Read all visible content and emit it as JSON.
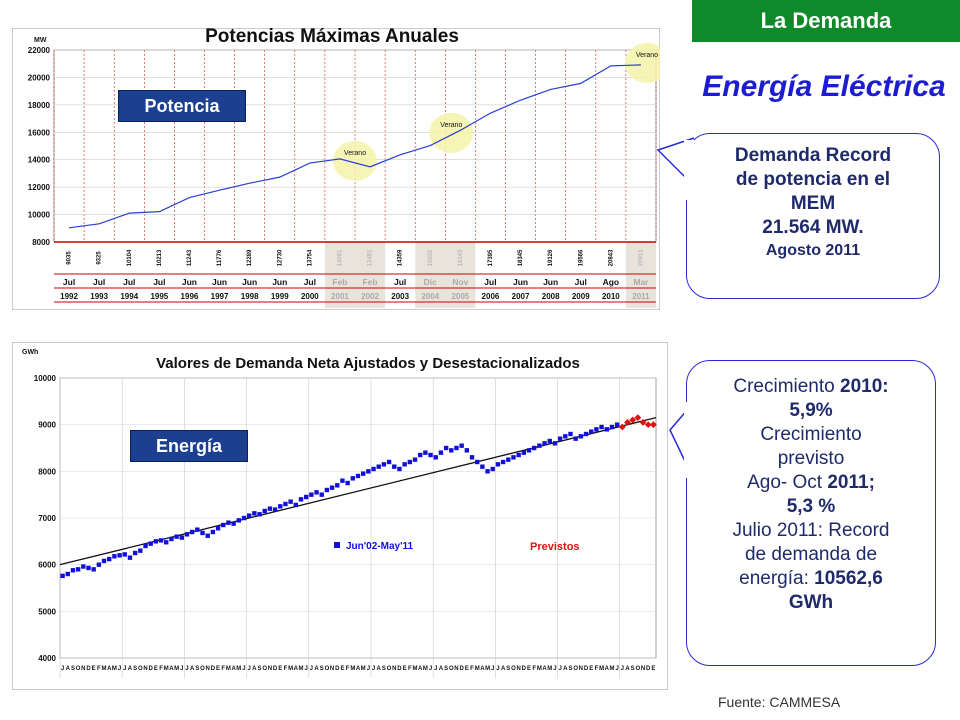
{
  "section_badge": "La Demanda",
  "title": "Energía Eléctrica",
  "source": "Fuente: CAMMESA",
  "tags": {
    "potencia": "Potencia",
    "energia": "Energía"
  },
  "callout_potencia": {
    "lines": [
      "Demanda Record",
      "de potencia en el",
      "MEM",
      "21.564 MW."
    ],
    "date": "Agosto 2011"
  },
  "callout_energia": {
    "line1_a": "Crecimiento ",
    "line1_b": "2010:",
    "line2": "5,9%",
    "line3": "Crecimiento",
    "line4": "previsto",
    "line5_a": "Ago- Oct ",
    "line5_b": "2011;",
    "line6": "5,3 %",
    "line7": "Julio 2011: Record",
    "line8": "de demanda de",
    "line9_a": "energía: ",
    "line9_b": "10562,6",
    "line10": "GWh"
  },
  "chart_data": [
    {
      "type": "line",
      "title": "Potencias Máximas Anuales",
      "ylabel": "MW",
      "ylim": [
        8000,
        22000
      ],
      "yticks": [
        8000,
        10000,
        12000,
        14000,
        16000,
        18000,
        20000,
        22000
      ],
      "values": [
        9035,
        9325,
        10104,
        10213,
        11243,
        11776,
        12289,
        12730,
        13754,
        14061,
        13481,
        14359,
        15032,
        16143,
        17395,
        18345,
        19126,
        19566,
        20843,
        20913
      ],
      "value_labels": [
        "9035",
        "9325",
        "10104",
        "10213",
        "11243",
        "11776",
        "12289",
        "12730",
        "13754",
        "14061",
        "13481",
        "14359",
        "15032",
        "16143",
        "17395",
        "18345",
        "19126",
        "19566",
        "20843",
        "20913"
      ],
      "months": [
        "Jul",
        "Jul",
        "Jul",
        "Jul",
        "Jun",
        "Jun",
        "Jun",
        "Jun",
        "Jul",
        "Feb",
        "Feb",
        "Jul",
        "Dic",
        "Nov",
        "Jul",
        "Jun",
        "Jun",
        "Jul",
        "Ago",
        "Mar"
      ],
      "years": [
        "1992",
        "1993",
        "1994",
        "1995",
        "1996",
        "1997",
        "1998",
        "1999",
        "2000",
        "2001",
        "2002",
        "2003",
        "2004",
        "2005",
        "2006",
        "2007",
        "2008",
        "2009",
        "2010",
        "2011"
      ],
      "shaded_indices": [
        9,
        10,
        12,
        13,
        19
      ],
      "annotations": [
        {
          "label": "Verano",
          "index": 9.5
        },
        {
          "label": "Verano",
          "index": 12.7
        },
        {
          "label": "Verano",
          "index": 19.2
        }
      ],
      "line_color": "#2a3fd0",
      "axis_color": "#cc0000"
    },
    {
      "type": "scatter",
      "title": "Valores de Demanda Neta Ajustados y Desestacionalizados",
      "ylabel": "GWh",
      "ylim": [
        4000,
        10000
      ],
      "yticks": [
        4000,
        5000,
        6000,
        7000,
        8000,
        9000,
        10000
      ],
      "legend": {
        "series": "Jun'02-May'11",
        "forecast": "Previstos"
      },
      "month_letters": [
        "J",
        "A",
        "S",
        "O",
        "N",
        "D",
        "E",
        "F",
        "M",
        "A",
        "M",
        "J"
      ],
      "series_start_month_index": 0,
      "values": [
        5760,
        5800,
        5880,
        5900,
        5960,
        5930,
        5900,
        6000,
        6080,
        6120,
        6180,
        6200,
        6220,
        6150,
        6250,
        6300,
        6400,
        6450,
        6500,
        6520,
        6480,
        6550,
        6600,
        6580,
        6650,
        6700,
        6750,
        6680,
        6620,
        6700,
        6780,
        6850,
        6900,
        6880,
        6950,
        7000,
        7050,
        7100,
        7080,
        7150,
        7200,
        7180,
        7250,
        7300,
        7350,
        7280,
        7400,
        7450,
        7500,
        7550,
        7500,
        7600,
        7650,
        7700,
        7800,
        7750,
        7850,
        7900,
        7950,
        8000,
        8050,
        8100,
        8150,
        8200,
        8100,
        8050,
        8150,
        8200,
        8250,
        8350,
        8400,
        8350,
        8300,
        8400,
        8500,
        8450,
        8500,
        8550,
        8450,
        8300,
        8200,
        8100,
        8000,
        8050,
        8150,
        8200,
        8250,
        8300,
        8350,
        8400,
        8450,
        8500,
        8550,
        8600,
        8650,
        8600,
        8700,
        8750,
        8800,
        8700,
        8750,
        8800,
        8850,
        8900,
        8950,
        8900,
        8950,
        9000
      ],
      "forecast_values": [
        8950,
        9050,
        9100,
        9150,
        9050,
        9000,
        9000
      ],
      "trend": [
        6000,
        9150
      ],
      "series_color": "#1010d8",
      "forecast_color": "#e01010"
    }
  ]
}
